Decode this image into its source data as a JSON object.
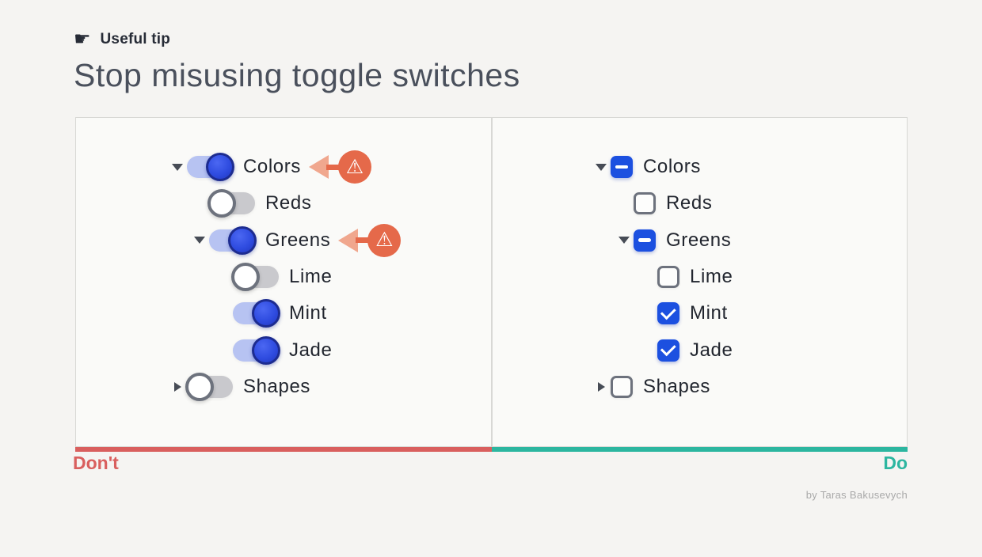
{
  "header": {
    "icon": "pointing-hand",
    "icon_glyph": "☛",
    "tip_label": "Useful tip",
    "title": "Stop misusing toggle switches"
  },
  "panels": [
    {
      "id": "dont",
      "verdict_label": "Don't",
      "accent_color": "#d95f5e",
      "control_type": "toggle",
      "rows": [
        {
          "label": "Colors",
          "level": 1,
          "state": "on",
          "disclosure": "expanded",
          "warning": true
        },
        {
          "label": "Reds",
          "level": 2,
          "state": "off",
          "disclosure": "none",
          "warning": false
        },
        {
          "label": "Greens",
          "level": 2,
          "state": "on",
          "disclosure": "expanded",
          "warning": true
        },
        {
          "label": "Lime",
          "level": 3,
          "state": "off",
          "disclosure": "none",
          "warning": false
        },
        {
          "label": "Mint",
          "level": 3,
          "state": "on",
          "disclosure": "none",
          "warning": false
        },
        {
          "label": "Jade",
          "level": 3,
          "state": "on",
          "disclosure": "none",
          "warning": false
        },
        {
          "label": "Shapes",
          "level": 1,
          "state": "off",
          "disclosure": "collapsed",
          "warning": false
        }
      ]
    },
    {
      "id": "do",
      "verdict_label": "Do",
      "accent_color": "#2cb6a0",
      "control_type": "checkbox",
      "rows": [
        {
          "label": "Colors",
          "level": 1,
          "state": "indeterminate",
          "disclosure": "expanded",
          "warning": false
        },
        {
          "label": "Reds",
          "level": 2,
          "state": "unchecked",
          "disclosure": "none",
          "warning": false
        },
        {
          "label": "Greens",
          "level": 2,
          "state": "indeterminate",
          "disclosure": "expanded",
          "warning": false
        },
        {
          "label": "Lime",
          "level": 3,
          "state": "unchecked",
          "disclosure": "none",
          "warning": false
        },
        {
          "label": "Mint",
          "level": 3,
          "state": "checked",
          "disclosure": "none",
          "warning": false
        },
        {
          "label": "Jade",
          "level": 3,
          "state": "checked",
          "disclosure": "none",
          "warning": false
        },
        {
          "label": "Shapes",
          "level": 1,
          "state": "unchecked",
          "disclosure": "collapsed",
          "warning": false
        }
      ]
    }
  ],
  "warning_icon": {
    "name": "warning-triangle-icon",
    "glyph": "⚠",
    "color": "#e5694a"
  },
  "footer": {
    "credit": "by Taras Bakusevych"
  },
  "colors": {
    "dont_accent": "#d95f5e",
    "do_accent": "#2cb6a0",
    "toggle_on_track": "#b7c3f2",
    "toggle_on_knob": "#2f4ce0",
    "toggle_off_track": "#c9c9cd",
    "checkbox_checked": "#1c50e0",
    "warning_orange": "#e5694a"
  }
}
